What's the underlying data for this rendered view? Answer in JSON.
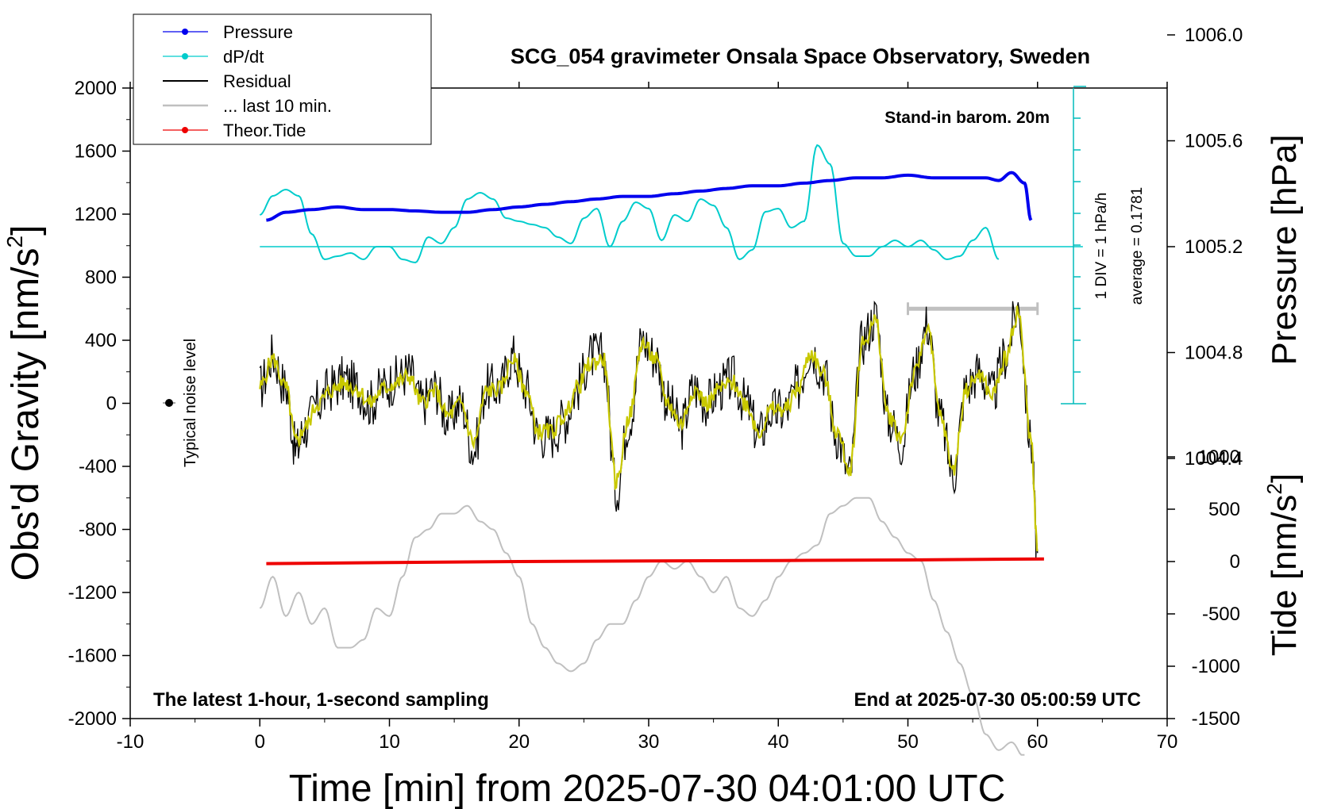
{
  "chart_data": {
    "type": "line",
    "title": "SCG_054 gravimeter Onsala Space Observatory, Sweden",
    "xlabel": "Time [min] from 2025-07-30 04:01:00 UTC",
    "ylabel": "Obs'd Gravity [nm/s",
    "ylabel_sup": "2",
    "ylabel_end": "]",
    "y2label": "Pressure [hPa]",
    "y3label": "Tide [nm/s",
    "y3label_sup": "2",
    "y3label_end": "]",
    "xlim": [
      -10,
      70
    ],
    "ylim": [
      -2000,
      2000
    ],
    "x_ticks": [
      -10,
      0,
      10,
      20,
      30,
      40,
      50,
      60,
      70
    ],
    "y_ticks": [
      2000,
      1600,
      1200,
      800,
      400,
      0,
      -400,
      -800,
      -1200,
      -1600,
      -2000
    ],
    "pressure_ticks": [
      "1006.0",
      "1005.6",
      "1005.2",
      "1004.8",
      "1004.4"
    ],
    "tide_ticks": [
      "1000",
      "500",
      "0",
      "-500",
      "-1000",
      "-1500"
    ],
    "annotations": {
      "barometer": "Stand-in barom. 20m",
      "sampling": "The latest 1-hour, 1-second sampling",
      "end_time": "End at 2025-07-30 05:00:59 UTC",
      "noise": "Typical noise level",
      "div": "1 DIV = 1 hPa/h",
      "average": "average = 0.1781"
    },
    "legend": [
      {
        "name": "Pressure",
        "color": "#0000ee",
        "marker": true
      },
      {
        "name": "dP/dt",
        "color": "#00cccc",
        "marker": true
      },
      {
        "name": "Residual",
        "color": "#000000",
        "marker": false
      },
      {
        "name": "... last 10 min.",
        "color": "#c0c0c0",
        "marker": false
      },
      {
        "name": "Theor.Tide",
        "color": "#ee0000",
        "marker": true
      }
    ],
    "series": [
      {
        "name": "Pressure",
        "axis": "pressure_hPa",
        "color": "#0000ee",
        "x": [
          0.5,
          2,
          4,
          6,
          8,
          10,
          12,
          14,
          16,
          18,
          20,
          22,
          24,
          26,
          28,
          30,
          32,
          34,
          36,
          38,
          40,
          42,
          44,
          46,
          48,
          50,
          52,
          54,
          56,
          57,
          58,
          59,
          59.5
        ],
        "y": [
          1005.3,
          1005.33,
          1005.34,
          1005.35,
          1005.34,
          1005.34,
          1005.335,
          1005.33,
          1005.33,
          1005.34,
          1005.35,
          1005.36,
          1005.37,
          1005.38,
          1005.39,
          1005.39,
          1005.4,
          1005.41,
          1005.42,
          1005.43,
          1005.43,
          1005.44,
          1005.45,
          1005.46,
          1005.46,
          1005.47,
          1005.46,
          1005.46,
          1005.46,
          1005.45,
          1005.48,
          1005.44,
          1005.3
        ]
      },
      {
        "name": "dP/dt",
        "axis": "dpdt_hPa_per_h",
        "color": "#00cccc",
        "x": [
          0,
          1,
          2,
          3,
          4,
          5,
          6,
          7,
          8,
          9,
          10,
          11,
          12,
          13,
          14,
          15,
          16,
          17,
          18,
          19,
          20,
          21,
          22,
          23,
          24,
          25,
          26,
          27,
          28,
          29,
          30,
          31,
          32,
          33,
          34,
          35,
          36,
          37,
          38,
          39,
          40,
          41,
          42,
          43,
          44,
          45,
          46,
          47,
          48,
          49,
          50,
          51,
          52,
          53,
          54,
          55,
          56,
          57
        ],
        "y": [
          1.0,
          1.6,
          1.8,
          1.6,
          0.4,
          -0.4,
          -0.3,
          -0.2,
          -0.4,
          0.0,
          0.0,
          -0.4,
          -0.5,
          0.3,
          0.1,
          0.6,
          1.5,
          1.7,
          1.5,
          0.9,
          0.8,
          0.7,
          0.6,
          0.3,
          0.1,
          0.9,
          1.2,
          0.0,
          0.8,
          1.4,
          1.2,
          0.2,
          1.0,
          0.8,
          1.5,
          1.3,
          0.6,
          -0.4,
          -0.1,
          1.1,
          1.2,
          0.6,
          0.8,
          3.2,
          2.6,
          0.1,
          -0.3,
          -0.3,
          0.0,
          0.2,
          0.0,
          0.2,
          -0.1,
          -0.4,
          -0.3,
          0.2,
          0.6,
          -0.4
        ]
      },
      {
        "name": "Residual",
        "axis": "gravity_nm_s2",
        "color": "#000000",
        "x": [
          0,
          1,
          2,
          2.8,
          3.5,
          4.5,
          5.5,
          6.5,
          7.5,
          8.5,
          9.5,
          10.5,
          11.5,
          12.5,
          13.5,
          14.5,
          15.5,
          16.5,
          17.5,
          18.5,
          19.5,
          20.5,
          21.5,
          22.5,
          23.5,
          24.5,
          25.5,
          26.5,
          27.5,
          28.5,
          29.5,
          30.5,
          31.5,
          32.5,
          33.5,
          34.5,
          35.5,
          36.5,
          37.5,
          38.5,
          39.5,
          40.5,
          41.5,
          42.5,
          43.5,
          44.5,
          45.5,
          46.5,
          47.5,
          48.5,
          49.5,
          50.5,
          51.5,
          52.5,
          53.5,
          54.5,
          55.5,
          56.5,
          57.5,
          58.5,
          59.5,
          60.0
        ],
        "y": [
          100,
          300,
          100,
          -300,
          -150,
          0,
          100,
          150,
          100,
          0,
          100,
          150,
          200,
          0,
          100,
          -100,
          0,
          -300,
          100,
          100,
          300,
          100,
          -200,
          -200,
          -100,
          100,
          300,
          300,
          -550,
          -100,
          400,
          300,
          0,
          -150,
          100,
          0,
          100,
          150,
          0,
          -200,
          -50,
          -50,
          100,
          350,
          200,
          -200,
          -450,
          400,
          550,
          -100,
          -250,
          200,
          500,
          -100,
          -450,
          100,
          200,
          50,
          300,
          600,
          -250,
          -950
        ]
      },
      {
        "name": "... last 10 min.",
        "axis": "gravity_nm_s2",
        "color": "#c0c0c0",
        "x": [
          0,
          1,
          2,
          3,
          4,
          5,
          6,
          7,
          8,
          9,
          10,
          11,
          12,
          13,
          14,
          15,
          16,
          17,
          18,
          19,
          20,
          21,
          22,
          23,
          24,
          25,
          26,
          27,
          28,
          29,
          30,
          31,
          32,
          33,
          34,
          35,
          36,
          37,
          38,
          39,
          40,
          41,
          42,
          43,
          44,
          45,
          46,
          47,
          48,
          49,
          50,
          51,
          52,
          53,
          54,
          55,
          56,
          57,
          58,
          59
        ],
        "y": [
          -1300,
          -1100,
          -1350,
          -1200,
          -1400,
          -1300,
          -1550,
          -1550,
          -1500,
          -1300,
          -1350,
          -1100,
          -850,
          -800,
          -700,
          -700,
          -650,
          -750,
          -800,
          -950,
          -1100,
          -1400,
          -1550,
          -1650,
          -1700,
          -1650,
          -1500,
          -1400,
          -1400,
          -1250,
          -1100,
          -1000,
          -1050,
          -1000,
          -1100,
          -1200,
          -1100,
          -1300,
          -1350,
          -1250,
          -1100,
          -1000,
          -950,
          -900,
          -700,
          -650,
          -600,
          -600,
          -750,
          -850,
          -950,
          -1000,
          -1250,
          -1450,
          -1650,
          -1850,
          -2100,
          -2200,
          -2150,
          -2250
        ]
      },
      {
        "name": "Residual smoothed",
        "axis": "gravity_nm_s2",
        "color": "#c8c800",
        "x": [
          0,
          1,
          2,
          2.8,
          3.5,
          4.5,
          5.5,
          6.5,
          7.5,
          8.5,
          9.5,
          10.5,
          11.5,
          12.5,
          13.5,
          14.5,
          15.5,
          16.5,
          17.5,
          18.5,
          19.5,
          20.5,
          21.5,
          22.5,
          23.5,
          24.5,
          25.5,
          26.5,
          27.5,
          28.5,
          29.5,
          30.5,
          31.5,
          32.5,
          33.5,
          34.5,
          35.5,
          36.5,
          37.5,
          38.5,
          39.5,
          40.5,
          41.5,
          42.5,
          43.5,
          44.5,
          45.5,
          46.5,
          47.5,
          48.5,
          49.5,
          50.5,
          51.5,
          52.5,
          53.5,
          54.5,
          55.5,
          56.5,
          57.5,
          58.5,
          59.5,
          60.0
        ],
        "y": [
          100,
          280,
          100,
          -250,
          -150,
          0,
          80,
          130,
          90,
          0,
          90,
          130,
          170,
          0,
          80,
          -80,
          0,
          -250,
          80,
          90,
          280,
          90,
          -180,
          -180,
          -80,
          100,
          250,
          280,
          -500,
          -80,
          380,
          280,
          0,
          -130,
          90,
          0,
          90,
          130,
          0,
          -180,
          -40,
          -40,
          90,
          320,
          180,
          -180,
          -420,
          380,
          520,
          -80,
          -220,
          180,
          480,
          -80,
          -420,
          90,
          180,
          50,
          280,
          580,
          -230,
          -930
        ]
      },
      {
        "name": "Theor.Tide",
        "axis": "tide_nm_s2",
        "color": "#ee0000",
        "x": [
          0.5,
          10,
          20,
          30,
          40,
          50,
          60.5
        ],
        "y": [
          -20,
          -10,
          0,
          5,
          10,
          15,
          25
        ]
      }
    ],
    "last10_bar": {
      "x": [
        50,
        60
      ],
      "y": 600
    },
    "zero_line_dpdt": 0
  }
}
